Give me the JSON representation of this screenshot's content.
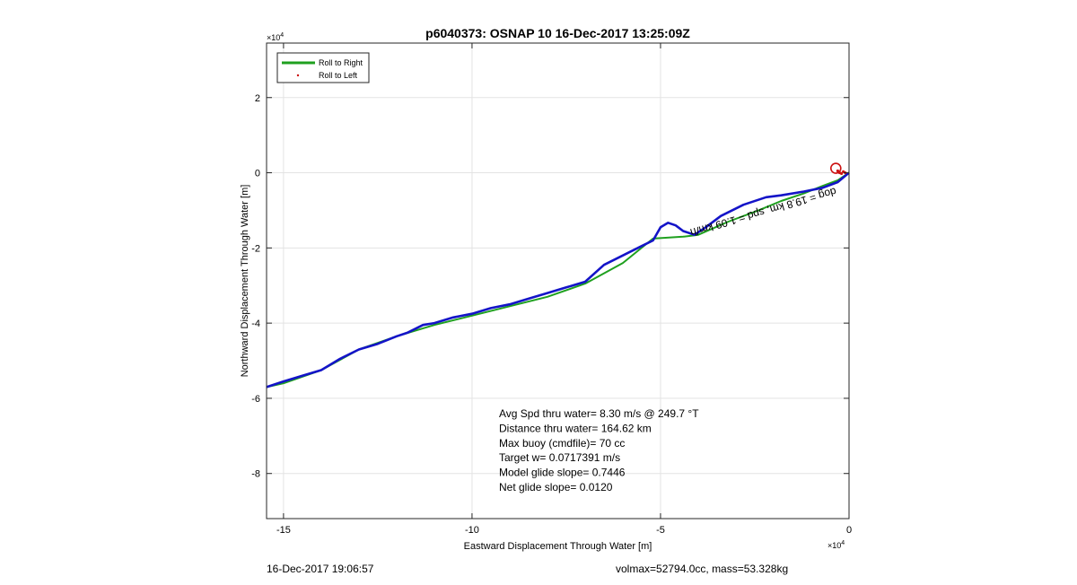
{
  "chart_data": {
    "type": "line",
    "title": "p6040373: OSNAP 10 16-Dec-2017 13:25:09Z",
    "xlabel": "Eastward Displacement Through Water [m]",
    "ylabel": "Northward Displacement Through Water [m]",
    "x_exponent_label": "×10",
    "x_exponent_power": "4",
    "y_exponent_label": "×10",
    "y_exponent_power": "4",
    "xlim": [
      -15.45,
      0
    ],
    "ylim": [
      -9.2,
      3.45
    ],
    "xticks": [
      -15,
      -10,
      -5,
      0
    ],
    "xtick_labels": [
      "-15",
      "-10",
      "-5",
      "0"
    ],
    "yticks": [
      2,
      0,
      -2,
      -4,
      -6,
      -8
    ],
    "ytick_labels": [
      "2",
      "0",
      "-2",
      "-4",
      "-6",
      "-8"
    ],
    "grid": true,
    "legend": {
      "placement": "top-left",
      "entries": [
        "Roll to Right",
        "Roll to Left"
      ]
    },
    "series": [
      {
        "name": "Roll to Right",
        "color": "#1fa01f",
        "x": [
          0.0,
          -0.3,
          -0.7,
          -1.2,
          -1.8,
          -2.4,
          -3.2,
          -4.0,
          -4.4,
          -5.2,
          -6.0,
          -7.0,
          -8.0,
          -9.0,
          -10.0,
          -11.0,
          -12.0,
          -13.0,
          -14.0,
          -15.0,
          -15.45
        ],
        "y": [
          0.0,
          -0.2,
          -0.35,
          -0.55,
          -0.75,
          -1.0,
          -1.3,
          -1.65,
          -1.7,
          -1.75,
          -2.4,
          -2.95,
          -3.3,
          -3.55,
          -3.8,
          -4.05,
          -4.35,
          -4.7,
          -5.25,
          -5.6,
          -5.7
        ]
      },
      {
        "name": "Track",
        "color": "#1414c8",
        "x": [
          0.0,
          -0.3,
          -0.7,
          -1.2,
          -1.8,
          -2.2,
          -2.8,
          -3.4,
          -3.8,
          -4.1,
          -4.4,
          -4.6,
          -4.8,
          -5.0,
          -5.2,
          -5.5,
          -6.0,
          -6.5,
          -7.0,
          -7.5,
          -8.0,
          -8.5,
          -9.0,
          -9.5,
          -10.0,
          -10.5,
          -11.0,
          -11.3,
          -11.7,
          -12.0,
          -12.5,
          -13.0,
          -13.5,
          -14.0,
          -14.5,
          -15.0,
          -15.45
        ],
        "y": [
          0.0,
          -0.25,
          -0.4,
          -0.5,
          -0.6,
          -0.65,
          -0.85,
          -1.15,
          -1.45,
          -1.65,
          -1.55,
          -1.4,
          -1.33,
          -1.45,
          -1.8,
          -1.95,
          -2.2,
          -2.45,
          -2.9,
          -3.05,
          -3.2,
          -3.35,
          -3.5,
          -3.6,
          -3.75,
          -3.85,
          -4.0,
          -4.05,
          -4.25,
          -4.35,
          -4.55,
          -4.7,
          -4.95,
          -5.25,
          -5.4,
          -5.55,
          -5.7
        ]
      },
      {
        "name": "Roll to Left",
        "color": "#cc1111",
        "x": [
          -0.3,
          -0.25,
          -0.2,
          -0.15,
          -0.1
        ],
        "y": [
          0.05,
          0.0,
          -0.02,
          0.03,
          0.0
        ]
      }
    ],
    "start_marker": {
      "x": -0.35,
      "y": 0.12,
      "color": "#cc1111"
    },
    "track_label": "dog = 19.8 km, spd = 1.09 km/h",
    "annotations": [
      "Avg Spd thru water=  8.30 m/s @ 249.7 °T",
      "Distance thru water= 164.62 km",
      "Max buoy (cmdfile)= 70 cc",
      "Target w= 0.0717391 m/s",
      "Model glide slope= 0.7446",
      "Net glide slope= 0.0120"
    ]
  },
  "footer": {
    "timestamp": "16-Dec-2017 19:06:57",
    "mass_info": "volmax=52794.0cc, mass=53.328kg"
  }
}
